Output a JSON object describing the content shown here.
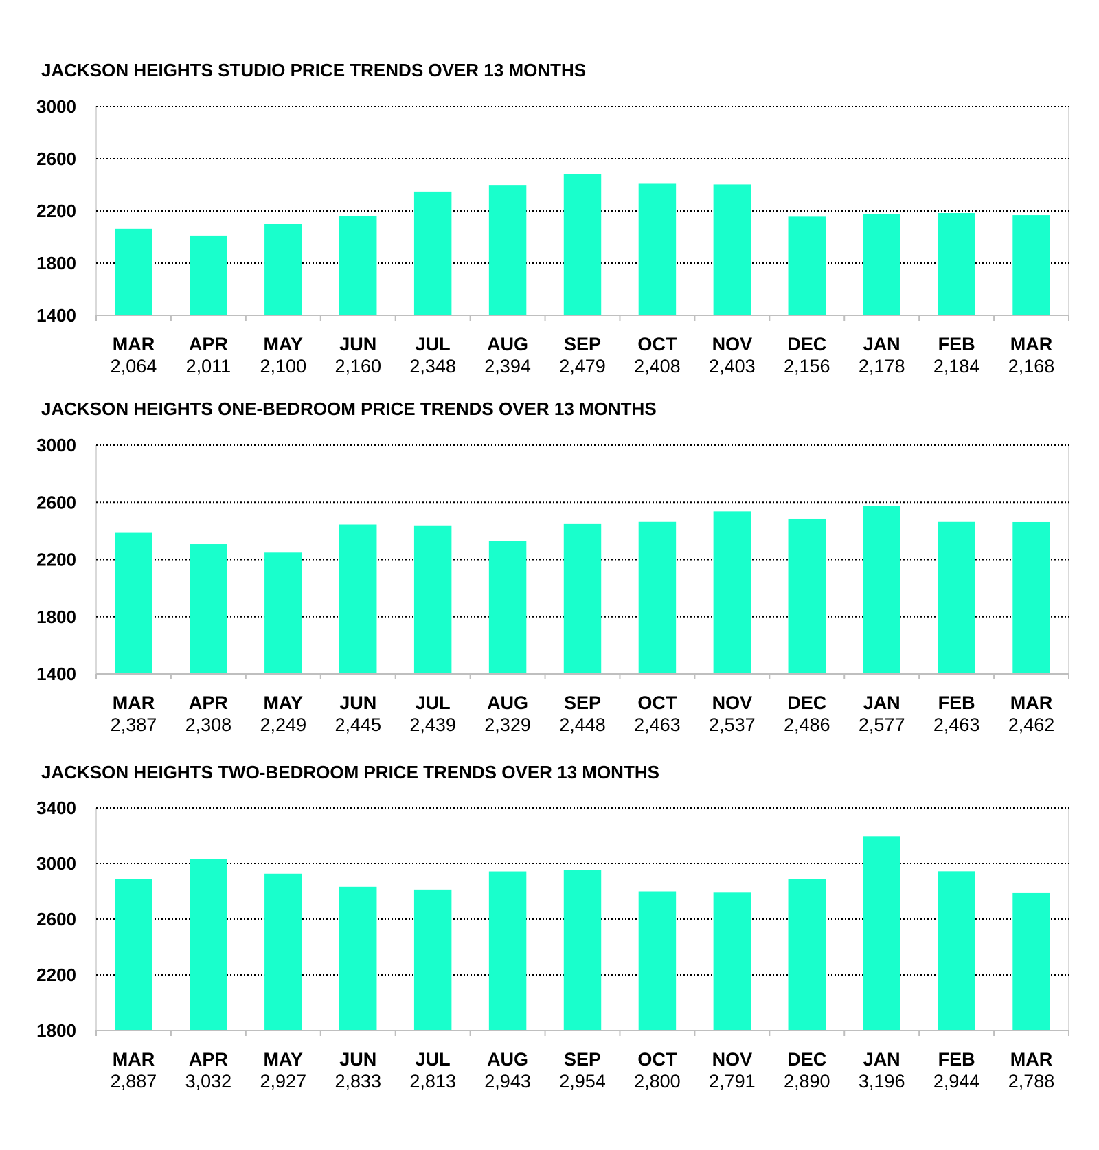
{
  "chart_data": [
    {
      "type": "bar",
      "title": "JACKSON HEIGHTS STUDIO PRICE TRENDS OVER 13 MONTHS",
      "categories": [
        "MAR",
        "APR",
        "MAY",
        "JUN",
        "JUL",
        "AUG",
        "SEP",
        "OCT",
        "NOV",
        "DEC",
        "JAN",
        "FEB",
        "MAR"
      ],
      "values": [
        2064,
        2011,
        2100,
        2160,
        2348,
        2394,
        2479,
        2408,
        2403,
        2156,
        2178,
        2184,
        2168
      ],
      "value_labels": [
        "2,064",
        "2,011",
        "2,100",
        "2,160",
        "2,348",
        "2,394",
        "2,479",
        "2,408",
        "2,403",
        "2,156",
        "2,178",
        "2,184",
        "2,168"
      ],
      "ylim": [
        1400,
        3000
      ],
      "yticks": [
        1400,
        1800,
        2200,
        2600,
        3000
      ],
      "grid": true,
      "color": "#19ffcc",
      "xlabel": "",
      "ylabel": ""
    },
    {
      "type": "bar",
      "title": "JACKSON HEIGHTS ONE-BEDROOM PRICE TRENDS OVER 13 MONTHS",
      "categories": [
        "MAR",
        "APR",
        "MAY",
        "JUN",
        "JUL",
        "AUG",
        "SEP",
        "OCT",
        "NOV",
        "DEC",
        "JAN",
        "FEB",
        "MAR"
      ],
      "values": [
        2387,
        2308,
        2249,
        2445,
        2439,
        2329,
        2448,
        2463,
        2537,
        2486,
        2577,
        2463,
        2462
      ],
      "value_labels": [
        "2,387",
        "2,308",
        "2,249",
        "2,445",
        "2,439",
        "2,329",
        "2,448",
        "2,463",
        "2,537",
        "2,486",
        "2,577",
        "2,463",
        "2,462"
      ],
      "ylim": [
        1400,
        3000
      ],
      "yticks": [
        1400,
        1800,
        2200,
        2600,
        3000
      ],
      "grid": true,
      "color": "#19ffcc",
      "xlabel": "",
      "ylabel": ""
    },
    {
      "type": "bar",
      "title": "JACKSON HEIGHTS TWO-BEDROOM PRICE TRENDS OVER 13 MONTHS",
      "categories": [
        "MAR",
        "APR",
        "MAY",
        "JUN",
        "JUL",
        "AUG",
        "SEP",
        "OCT",
        "NOV",
        "DEC",
        "JAN",
        "FEB",
        "MAR"
      ],
      "values": [
        2887,
        3032,
        2927,
        2833,
        2813,
        2943,
        2954,
        2800,
        2791,
        2890,
        3196,
        2944,
        2788
      ],
      "value_labels": [
        "2,887",
        "3,032",
        "2,927",
        "2,833",
        "2,813",
        "2,943",
        "2,954",
        "2,800",
        "2,791",
        "2,890",
        "3,196",
        "2,944",
        "2,788"
      ],
      "ylim": [
        1800,
        3400
      ],
      "yticks": [
        1800,
        2200,
        2600,
        3000,
        3400
      ],
      "grid": true,
      "color": "#19ffcc",
      "xlabel": "",
      "ylabel": ""
    }
  ]
}
